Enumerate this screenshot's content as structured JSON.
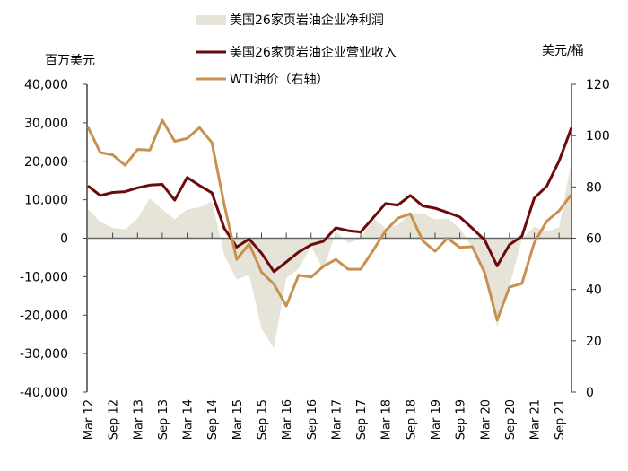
{
  "chart_data": {
    "type": "area+line",
    "left_axis_unit": "百万美元",
    "right_axis_unit": "美元/桶",
    "ylim_left": [
      -40000,
      40000
    ],
    "ylim_right": [
      0,
      120
    ],
    "left_ticks": [
      "40,000",
      "30,000",
      "20,000",
      "10,000",
      "0",
      "-10,000",
      "-20,000",
      "-30,000",
      "-40,000"
    ],
    "left_tick_values": [
      40000,
      30000,
      20000,
      10000,
      0,
      -10000,
      -20000,
      -30000,
      -40000
    ],
    "right_ticks": [
      "120",
      "100",
      "80",
      "60",
      "40",
      "20",
      "0"
    ],
    "right_tick_values": [
      120,
      100,
      80,
      60,
      40,
      20,
      0
    ],
    "x_tick_labels": [
      "Mar 12",
      "Sep 12",
      "Mar 13",
      "Sep 13",
      "Mar 14",
      "Sep 14",
      "Mar 15",
      "Sep 15",
      "Mar 16",
      "Sep 16",
      "Mar 17",
      "Sep 17",
      "Mar 18",
      "Sep 18",
      "Mar 19",
      "Sep 19",
      "Mar 20",
      "Sep 20",
      "Mar 21",
      "Sep 21"
    ],
    "x_frequency": "quarterly, Mar 12 – Dec 21",
    "legend_position": "top",
    "series": [
      {
        "name": "美国26家页岩油企业净利润",
        "kind": "area",
        "axis": "left",
        "color": "#e6e4d8",
        "values": [
          7600,
          4300,
          2700,
          2300,
          5100,
          10400,
          7500,
          4900,
          7500,
          8000,
          9600,
          -4400,
          -10800,
          -9500,
          -23500,
          -28600,
          -10400,
          -7900,
          -2100,
          -8300,
          1800,
          -1300,
          -200,
          5300,
          2600,
          3400,
          6500,
          6500,
          4900,
          5100,
          2600,
          -2500,
          -8300,
          -23100,
          -12600,
          -200,
          3000,
          1800,
          2800,
          20100
        ]
      },
      {
        "name": "美国26家页岩油企业营业收入",
        "kind": "line",
        "axis": "left",
        "color": "#6b0a0a",
        "values": [
          13600,
          11100,
          11900,
          12100,
          13100,
          13800,
          14000,
          9900,
          15800,
          13700,
          11800,
          2600,
          -2300,
          -200,
          -3900,
          -8700,
          -6200,
          -3600,
          -1700,
          -800,
          2700,
          1950,
          1600,
          5300,
          9000,
          8600,
          11100,
          8400,
          7800,
          6700,
          5500,
          2600,
          -500,
          -7200,
          -1700,
          500,
          10400,
          13500,
          20100,
          28700
        ]
      },
      {
        "name": "WTI油价（右轴）",
        "kind": "line",
        "axis": "right",
        "color": "#c8914f",
        "values": [
          103.3,
          93.4,
          92.5,
          88.4,
          94.6,
          94.4,
          106,
          97.8,
          98.9,
          103.1,
          97.3,
          73,
          51.7,
          57.8,
          46.8,
          42.1,
          33.6,
          45.6,
          44.8,
          49.1,
          51.7,
          47.9,
          47.9,
          55.2,
          62.9,
          67.8,
          69.5,
          59,
          54.9,
          60,
          56.4,
          56.7,
          46.5,
          28.1,
          40.9,
          42.3,
          58.2,
          66.6,
          70.7,
          77.1
        ]
      }
    ]
  }
}
